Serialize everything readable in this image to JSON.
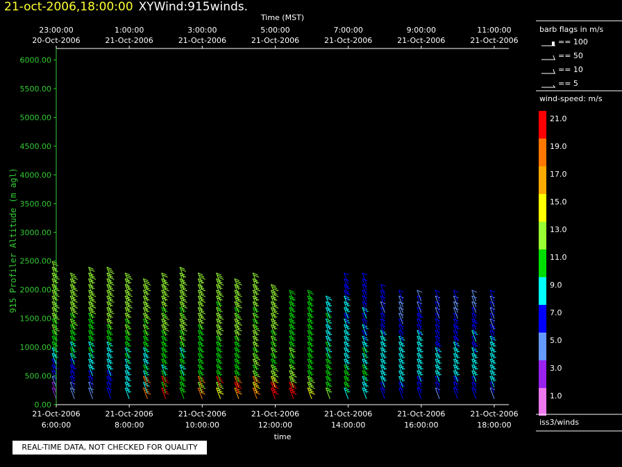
{
  "title": {
    "date": "21-oct-2006,18:00:00",
    "name": "XYWind:915winds."
  },
  "notice": "REAL-TIME DATA, NOT CHECKED FOR QUALITY",
  "chart_data": {
    "type": "wind-barb",
    "top_axis": {
      "label": "Time (MST)",
      "ticks": [
        {
          "time": "23:00:00",
          "date": "20-Oct-2006"
        },
        {
          "time": "1:00:00",
          "date": "21-Oct-2006"
        },
        {
          "time": "3:00:00",
          "date": "21-Oct-2006"
        },
        {
          "time": "5:00:00",
          "date": "21-Oct-2006"
        },
        {
          "time": "7:00:00",
          "date": "21-Oct-2006"
        },
        {
          "time": "9:00:00",
          "date": "21-Oct-2006"
        },
        {
          "time": "11:00:00",
          "date": "21-Oct-2006"
        }
      ]
    },
    "bottom_axis": {
      "label": "time",
      "ticks": [
        {
          "date": "21-Oct-2006",
          "time": "6:00:00"
        },
        {
          "date": "21-Oct-2006",
          "time": "8:00:00"
        },
        {
          "date": "21-Oct-2006",
          "time": "10:00:00"
        },
        {
          "date": "21-Oct-2006",
          "time": "12:00:00"
        },
        {
          "date": "21-Oct-2006",
          "time": "14:00:00"
        },
        {
          "date": "21-Oct-2006",
          "time": "16:00:00"
        },
        {
          "date": "21-Oct-2006",
          "time": "18:00:00"
        }
      ]
    },
    "y_axis": {
      "label": "915 Profiler Altitude (m agl)",
      "ticks": [
        "0.00",
        "500.00",
        "1000.00",
        "1500.00",
        "2000.00",
        "2500.00",
        "3000.00",
        "3500.00",
        "4000.00",
        "4500.00",
        "5000.00",
        "5500.00",
        "6000.00"
      ],
      "ylim": [
        0,
        6200
      ]
    },
    "x_range_hours": [
      6,
      18.4
    ],
    "barb_legend": {
      "title": "barb flags in m/s",
      "items": [
        "== 100",
        "== 50",
        "== 10",
        "== 5"
      ]
    },
    "colorbar": {
      "title": "wind-speed: m/s",
      "labels": [
        "21.0",
        "19.0",
        "17.0",
        "15.0",
        "13.0",
        "11.0",
        "9.0",
        "7.0",
        "5.0",
        "3.0",
        "1.0"
      ],
      "colors": [
        "#ff0000",
        "#ff7700",
        "#ffaa00",
        "#ffff00",
        "#99ff33",
        "#00dd00",
        "#00ffff",
        "#0000ff",
        "#6699ff",
        "#9922ee",
        "#ee77ee"
      ]
    },
    "source": "iss3/winds",
    "profile_times": [
      6.0,
      6.5,
      7.0,
      7.5,
      8.0,
      8.5,
      9.0,
      9.5,
      10.0,
      10.5,
      11.0,
      11.5,
      12.0,
      12.5,
      13.0,
      13.5,
      14.0,
      14.5,
      15.0,
      15.5,
      16.0,
      16.5,
      17.0,
      17.5,
      18.0
    ],
    "profile_tops": [
      2300,
      2100,
      2200,
      2200,
      2100,
      2050,
      2100,
      2200,
      2150,
      2100,
      2050,
      2100,
      1900,
      1850,
      1800,
      1700,
      2100,
      2100,
      1900,
      1850,
      1850,
      1800,
      1800,
      1800,
      1800
    ],
    "speed_profile": {
      "altitudes": [
        100,
        400,
        800,
        1200,
        1700,
        2200
      ],
      "morning_speeds": [
        3,
        7,
        9,
        12,
        13,
        13
      ],
      "noon_speeds": [
        19,
        13,
        12,
        12,
        13,
        13
      ],
      "afternoon_speeds": [
        6,
        9,
        9,
        7,
        6,
        5
      ]
    }
  }
}
